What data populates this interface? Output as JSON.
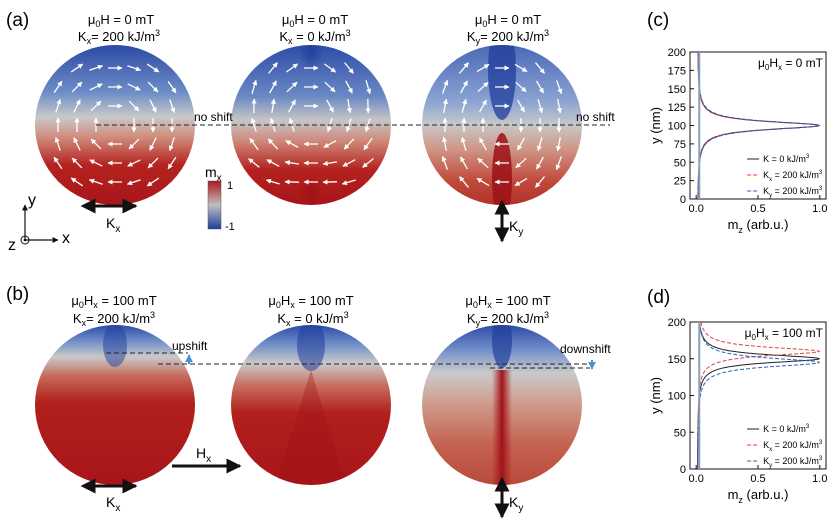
{
  "panels": [
    {
      "label": "(a)",
      "row": 0
    },
    {
      "label": "(b)",
      "row": 1
    }
  ],
  "disk_labels": {
    "a": [
      {
        "line1": [
          "μ",
          "0",
          "H = 0 mT",
          ""
        ],
        "line2": [
          "K",
          "x",
          "= 200 kJ/m",
          "3"
        ]
      },
      {
        "line1": [
          "μ",
          "0",
          "H = 0 mT",
          ""
        ],
        "line2": [
          "K",
          "x",
          " = 0 kJ/m",
          "3"
        ]
      },
      {
        "line1": [
          "μ",
          "0",
          "H = 0 mT",
          ""
        ],
        "line2": [
          "K",
          "y",
          "= 200 kJ/m",
          "3"
        ]
      }
    ],
    "b": [
      {
        "line1": [
          "μ",
          "0",
          "H",
          "x",
          " = 100 mT"
        ],
        "line2": [
          "K",
          "x",
          "= 200 kJ/m",
          "3"
        ]
      },
      {
        "line1": [
          "μ",
          "0",
          "H",
          "x",
          " = 100 mT"
        ],
        "line2": [
          "K",
          "x",
          " = 0 kJ/m",
          "3"
        ]
      },
      {
        "line1": [
          "μ",
          "0",
          "H",
          "x",
          " = 100 mT"
        ],
        "line2": [
          "K",
          "y",
          "= 200 kJ/m",
          "3"
        ]
      }
    ]
  },
  "annotations": {
    "no_shift": "no shift",
    "upshift": "upshift",
    "downshift": "downshift"
  },
  "colorbar": {
    "label": [
      "m",
      "x"
    ],
    "max": "1",
    "min": "-1",
    "colors": {
      "top": "#b0171b",
      "mid": "#bfbfbf",
      "bottom": "#1f3e9b"
    }
  },
  "axes_triad": {
    "y": "y",
    "x": "x",
    "z": "z"
  },
  "anisotropy_labels": {
    "kx": [
      "K",
      "x"
    ],
    "ky": [
      "K",
      "y"
    ],
    "hx": [
      "H",
      "x"
    ]
  },
  "chart_data": [
    {
      "panel": "(c)",
      "type": "line",
      "xlabel": [
        "m",
        "z",
        " (arb.u.)"
      ],
      "ylabel": "y (nm)",
      "xlim": [
        -0.05,
        1.05
      ],
      "ylim": [
        0,
        200
      ],
      "xticks": [
        0.0,
        0.5,
        1.0
      ],
      "xtick_labels": [
        "0.0",
        "0.5",
        "1.0"
      ],
      "yticks": [
        0,
        25,
        50,
        75,
        100,
        125,
        150,
        175,
        200
      ],
      "ytick_labels": [
        "0",
        "25",
        "50",
        "75",
        "100",
        "125",
        "150",
        "175",
        "200"
      ],
      "annotation": [
        "μ",
        "0",
        "H",
        "x",
        " = 0 mT"
      ],
      "legend_position": "bottom-right",
      "series": [
        {
          "name": [
            "K = 0 kJ/m",
            "3"
          ],
          "color": "#222222",
          "dash": "solid",
          "center": 100,
          "width": 6.5,
          "x": [
            0.01,
            0.02,
            0.05,
            0.15,
            0.5,
            1.0,
            0.5,
            0.15,
            0.05,
            0.02,
            0.01
          ],
          "y": [
            50,
            80,
            89,
            94,
            97.5,
            100,
            102.5,
            106,
            111,
            120,
            150
          ]
        },
        {
          "name": [
            "K",
            "x",
            " = 200 kJ/m",
            "3"
          ],
          "color": "#e04040",
          "dash": "dashed",
          "center": 100,
          "width": 6.3,
          "x": [
            0.01,
            0.02,
            0.05,
            0.15,
            0.5,
            1.0,
            0.5,
            0.15,
            0.05,
            0.02,
            0.01
          ],
          "y": [
            50,
            80,
            89,
            94,
            97.5,
            100,
            102.5,
            106,
            111,
            120,
            150
          ]
        },
        {
          "name": [
            "K",
            "y",
            " = 200 kJ/m",
            "3"
          ],
          "color": "#2f5fc0",
          "dash": "dashed",
          "center": 100,
          "width": 6.8,
          "x": [
            0.01,
            0.02,
            0.05,
            0.15,
            0.5,
            1.0,
            0.5,
            0.15,
            0.05,
            0.02,
            0.01
          ],
          "y": [
            50,
            80,
            89,
            94,
            97.5,
            100,
            102.5,
            106,
            111,
            120,
            150
          ]
        }
      ]
    },
    {
      "panel": "(d)",
      "type": "line",
      "xlabel": [
        "m",
        "z",
        " (arb.u.)"
      ],
      "ylabel": "y (nm)",
      "xlim": [
        -0.05,
        1.05
      ],
      "ylim": [
        0,
        200
      ],
      "xticks": [
        0.0,
        0.5,
        1.0
      ],
      "xtick_labels": [
        "0.0",
        "0.5",
        "1.0"
      ],
      "yticks": [
        0,
        50,
        100,
        150,
        200
      ],
      "ytick_labels": [
        "0",
        "50",
        "100",
        "150",
        "200"
      ],
      "annotation": [
        "μ",
        "0",
        "H",
        "x",
        " = 100 mT"
      ],
      "legend_position": "bottom-right",
      "series": [
        {
          "name": [
            "K = 0 kJ/m",
            "3"
          ],
          "color": "#222222",
          "dash": "solid",
          "center": 150,
          "width": 6.5,
          "x": [
            0.01,
            0.02,
            0.05,
            0.15,
            0.5,
            1.0,
            0.5,
            0.15,
            0.05,
            0.02,
            0.01
          ],
          "y": [
            100,
            130,
            139,
            144,
            147.5,
            150,
            152.5,
            156,
            161,
            170,
            200
          ]
        },
        {
          "name": [
            "K",
            "x",
            " = 200 kJ/m",
            "3"
          ],
          "color": "#e04040",
          "dash": "dashed",
          "center": 160,
          "width": 6.8,
          "x": [
            0.01,
            0.02,
            0.05,
            0.15,
            0.5,
            1.0,
            0.5,
            0.15,
            0.05,
            0.02,
            0.01
          ],
          "y": [
            110,
            140,
            149,
            154,
            157.5,
            160,
            162.5,
            166,
            171,
            180,
            200
          ]
        },
        {
          "name": [
            "K",
            "y",
            " = 200 kJ/m",
            "3"
          ],
          "color": "#2f5fc0",
          "dash": "dashed",
          "center": 145,
          "width": 7.2,
          "x": [
            0.01,
            0.02,
            0.05,
            0.15,
            0.5,
            1.0,
            0.5,
            0.15,
            0.05,
            0.02,
            0.01
          ],
          "y": [
            95,
            125,
            134,
            139,
            142.5,
            145,
            147.5,
            151,
            156,
            165,
            195
          ]
        }
      ]
    }
  ]
}
